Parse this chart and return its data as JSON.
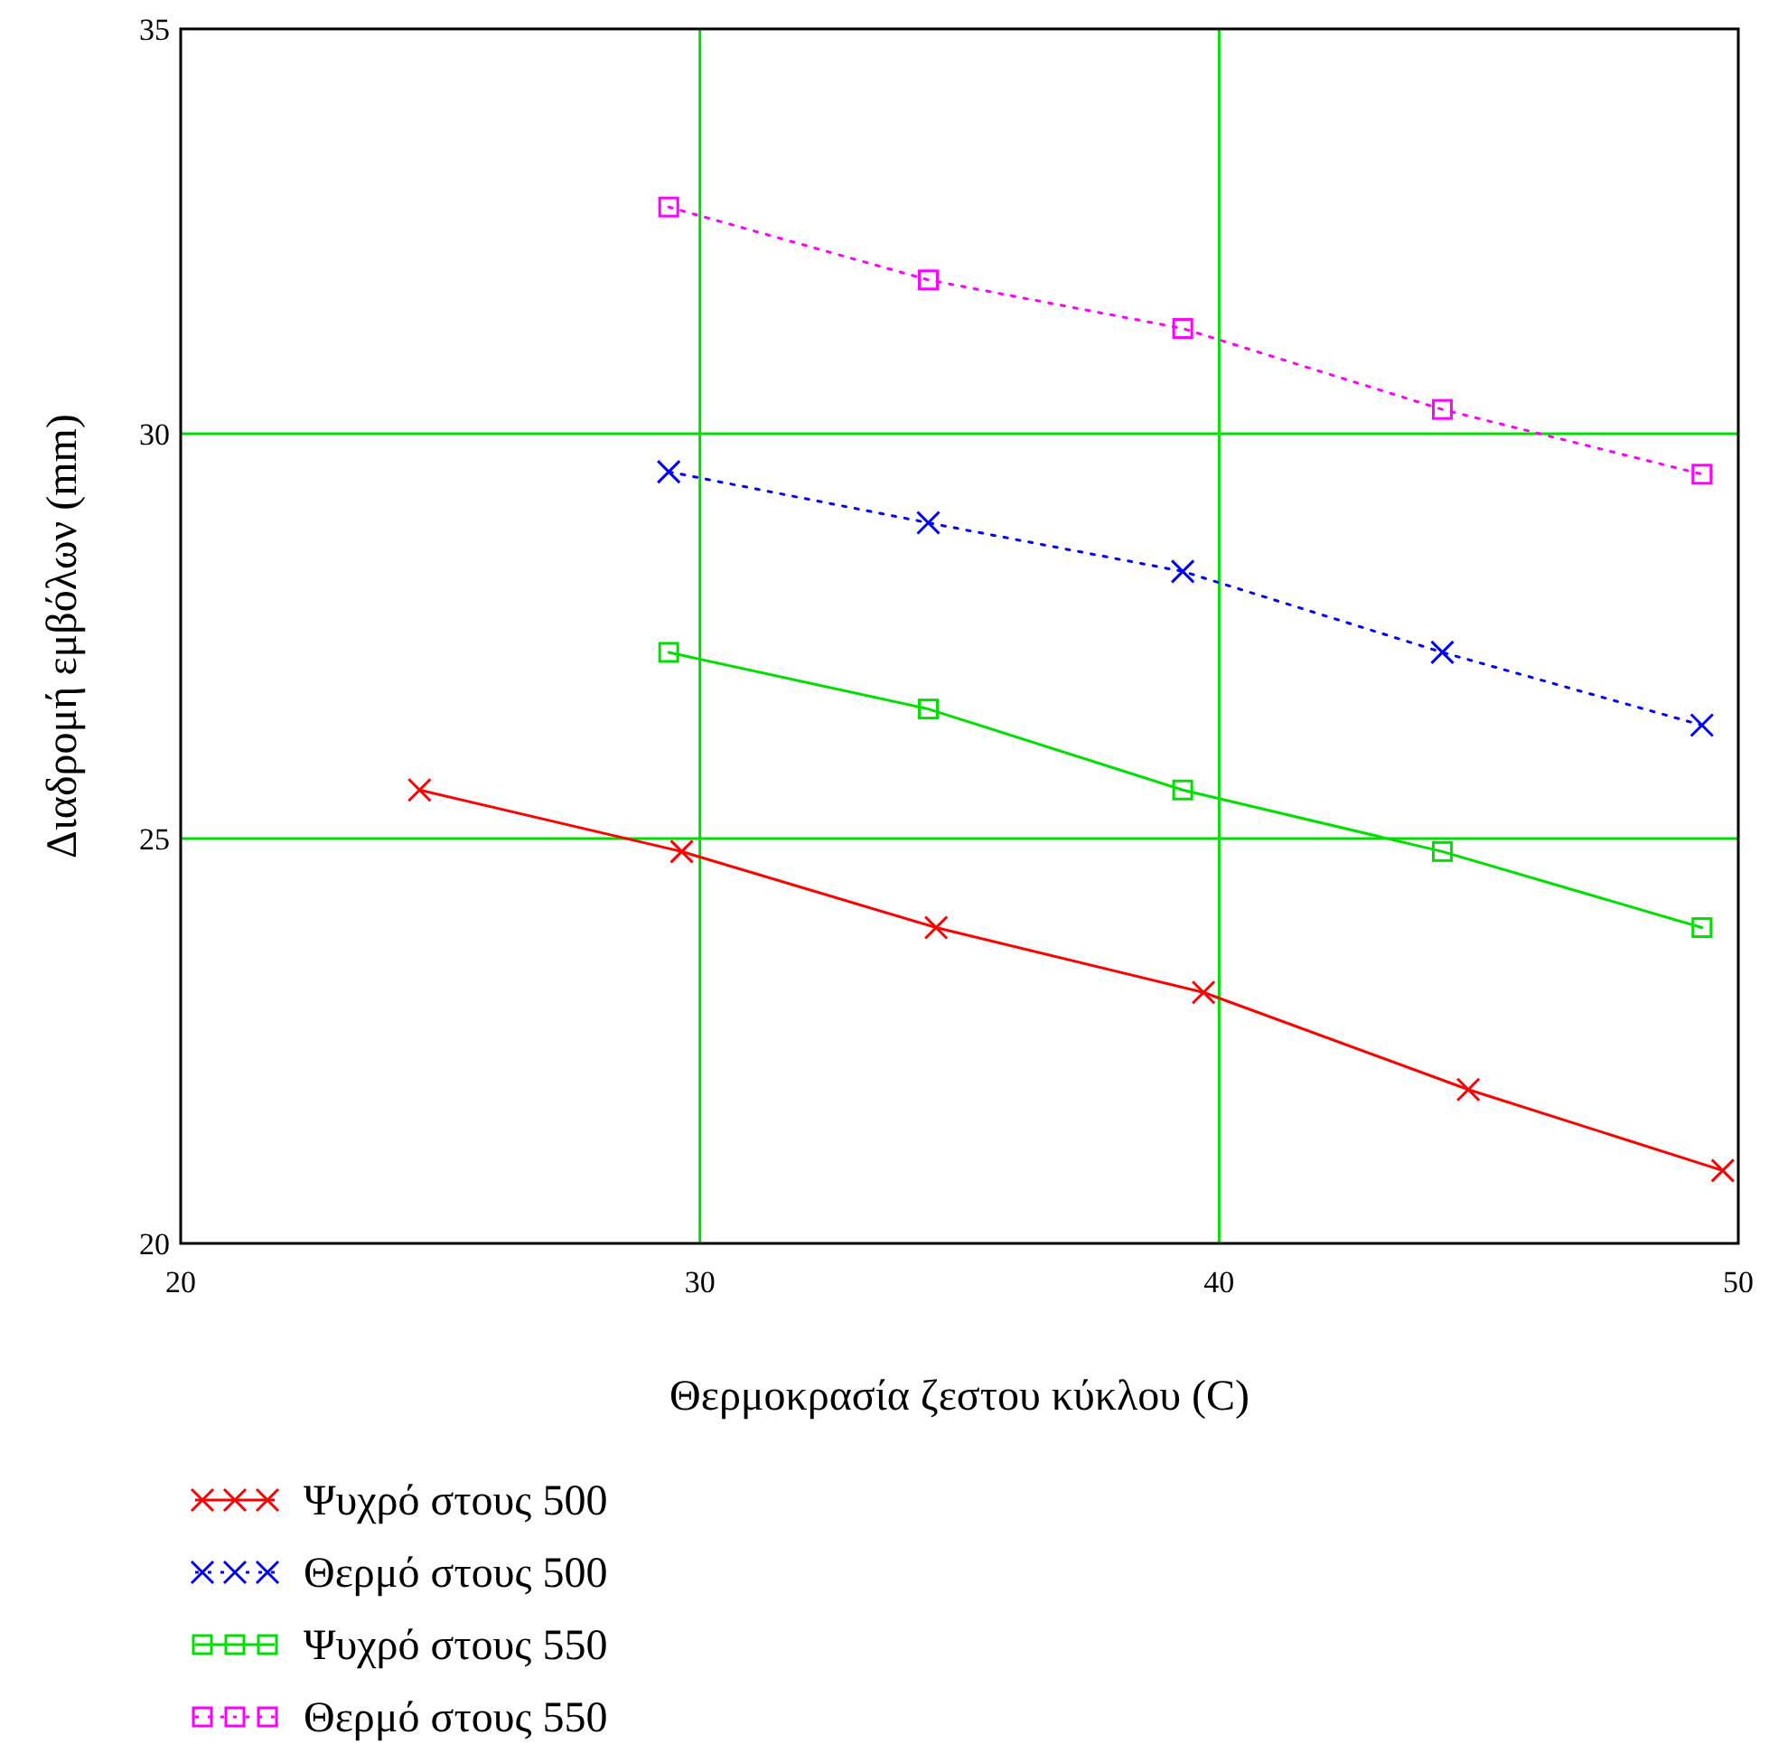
{
  "chart_data": {
    "type": "line",
    "xlabel": "Θερμοκρασία ζεστου κύκλου (C)",
    "ylabel": "Διαδρομή εμβόλων (mm)",
    "xlim": [
      20,
      50
    ],
    "ylim": [
      20,
      35
    ],
    "xticks": [
      20,
      30,
      40,
      50
    ],
    "yticks": [
      20,
      25,
      30,
      35
    ],
    "grid": true,
    "legend": "bottom",
    "series": [
      {
        "name": "Ψυχρό στους 500",
        "color": "#ff0000",
        "marker": "cross",
        "line_style": "solid",
        "x": [
          24.6,
          29.65,
          34.55,
          39.7,
          44.8,
          49.7
        ],
        "values": [
          25.6,
          24.84,
          23.9,
          23.1,
          21.9,
          20.9
        ]
      },
      {
        "name": "Θερμό στους 500",
        "color": "#0000ff",
        "marker": "cross",
        "line_style": "dotted",
        "x": [
          29.4,
          34.4,
          39.3,
          44.3,
          49.3
        ],
        "values": [
          29.53,
          28.9,
          28.3,
          27.3,
          26.4
        ]
      },
      {
        "name": "Ψυχρό στους 550",
        "color": "#00e000",
        "marker": "square",
        "line_style": "solid",
        "x": [
          29.4,
          34.4,
          39.3,
          44.3,
          49.3
        ],
        "values": [
          27.3,
          26.6,
          25.6,
          24.84,
          23.9
        ]
      },
      {
        "name": "Θερμό στους 550",
        "color": "#ff00ff",
        "marker": "square",
        "line_style": "dotted",
        "x": [
          29.4,
          34.4,
          39.3,
          44.3,
          49.3
        ],
        "values": [
          32.8,
          31.9,
          31.3,
          30.3,
          29.5
        ]
      }
    ]
  }
}
